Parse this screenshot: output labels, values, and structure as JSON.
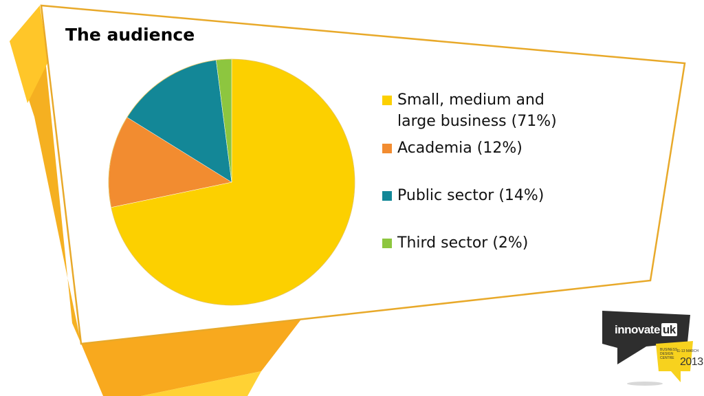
{
  "slide": {
    "title": "The audience"
  },
  "colors": {
    "yellow": "#FCD000",
    "orange": "#F28C30",
    "teal": "#138797",
    "green": "#8DC63F",
    "frame_border": "#E8A92A",
    "left_ribbon": "#F5B021",
    "bottom_band": "#F8A91E",
    "logo_dark": "#2E2E2E",
    "logo_badge": "#F7D21E"
  },
  "chart_data": {
    "type": "pie",
    "title": "The audience",
    "start_angle_deg": 0,
    "direction": "clockwise",
    "legend_position": "right",
    "slices": [
      {
        "label": "Small, medium and large business (71%)",
        "value": 71,
        "color": "#FCD000"
      },
      {
        "label": "Academia (12%)",
        "value": 12,
        "color": "#F28C30"
      },
      {
        "label": "Public sector (14%)",
        "value": 14,
        "color": "#138797"
      },
      {
        "label": "Third sector (2%)",
        "value": 2,
        "color": "#8DC63F"
      }
    ]
  },
  "legend": {
    "items": [
      {
        "label": "Small, medium and large business (71%)"
      },
      {
        "label": "Academia (12%)"
      },
      {
        "label": "Public sector (14%)"
      },
      {
        "label": "Third sector (2%)"
      }
    ]
  },
  "logo": {
    "brand": "innovate",
    "brand_suffix": "uk",
    "badge_line1": "BUSINESS",
    "badge_line2": "DESIGN",
    "badge_line3": "CENTRE",
    "badge_dates": "11-13 MARCH",
    "badge_year": "2013"
  }
}
